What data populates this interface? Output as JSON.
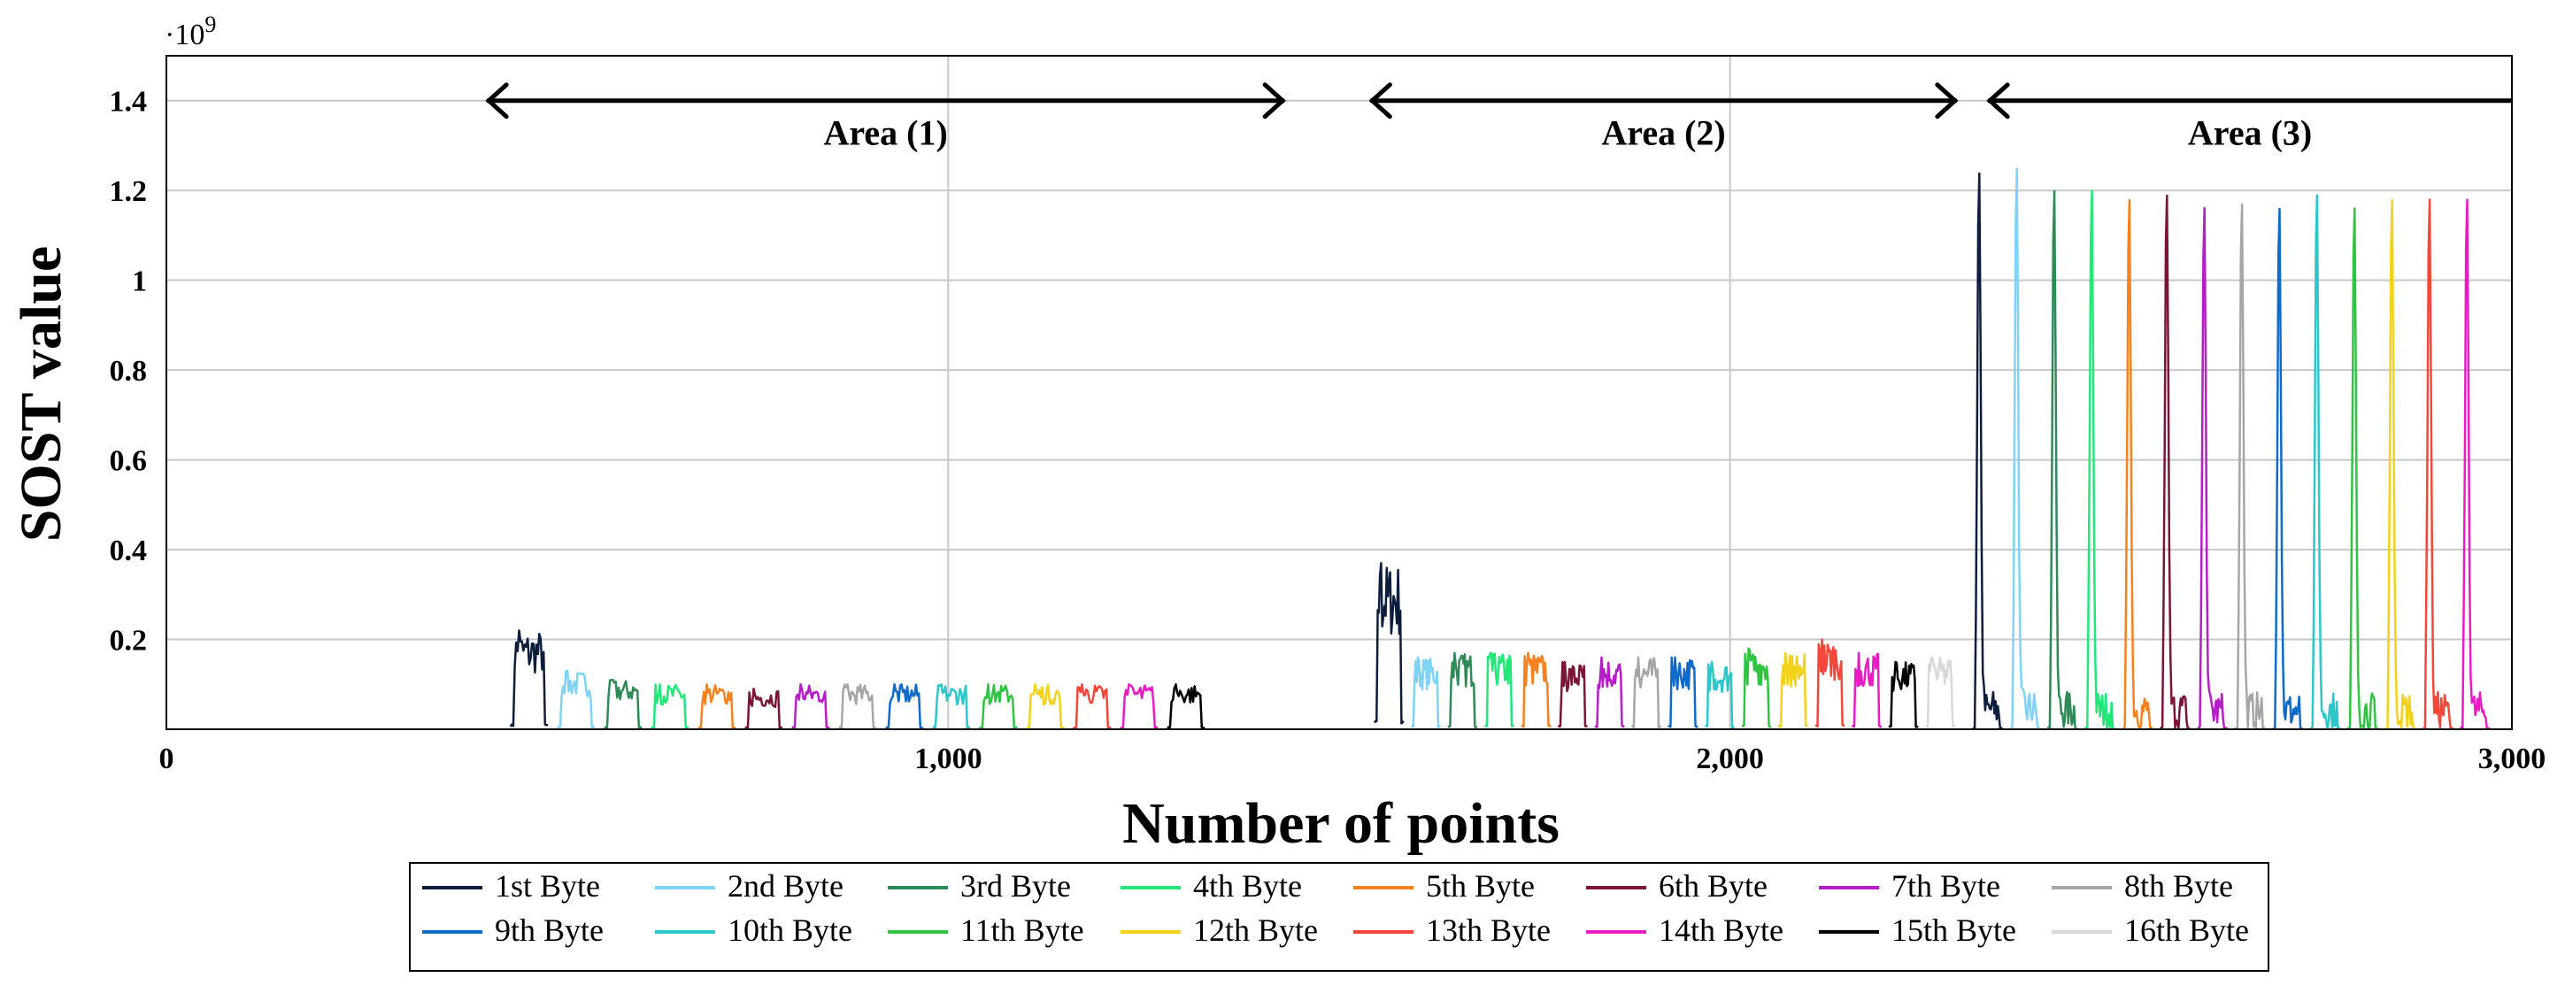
{
  "chart_data": {
    "type": "line",
    "title": "",
    "xlabel": "Number of points",
    "ylabel": "SOST value",
    "y_scale_label": "·10",
    "y_scale_exponent": "9",
    "xlim": [
      0,
      3000
    ],
    "ylim": [
      0,
      1.5
    ],
    "x_ticks": [
      0,
      1000,
      2000,
      3000
    ],
    "x_tick_labels": [
      "0",
      "1,000",
      "2,000",
      "3,000"
    ],
    "y_ticks": [
      0.2,
      0.4,
      0.6,
      0.8,
      1,
      1.2,
      1.4
    ],
    "y_tick_labels": [
      "0.2",
      "0.4",
      "0.6",
      "0.8",
      "1",
      "1.2",
      "1.4"
    ],
    "grid": true,
    "areas": [
      {
        "label": "Area (1)",
        "x_start": 410,
        "x_end": 1430,
        "y": 1.4
      },
      {
        "label": "Area (2)",
        "x_start": 1540,
        "x_end": 2290,
        "y": 1.4
      },
      {
        "label": "Area (3)",
        "x_start": 2330,
        "x_end": 3000,
        "y": 1.4
      }
    ],
    "legend": {
      "placement": "bottom-center",
      "rows": 2
    },
    "segments": {
      "area1": {
        "x_start": 440,
        "x_end": 1440,
        "step": 60
      },
      "area2": {
        "x_start": 1545,
        "x_end": 2285,
        "step": 47
      },
      "area3": {
        "x_start": 2310,
        "x_end": 3000,
        "step": 48
      }
    },
    "series": [
      {
        "name": "1st Byte",
        "color": "#0d1e3d",
        "peaks": [
          0.22,
          0.37,
          1.26
        ]
      },
      {
        "name": "2nd Byte",
        "color": "#7fd3f5",
        "peaks": [
          0.13,
          0.16,
          1.27
        ]
      },
      {
        "name": "3rd Byte",
        "color": "#2e8b57",
        "peaks": [
          0.11,
          0.17,
          1.22
        ]
      },
      {
        "name": "4th Byte",
        "color": "#22e87a",
        "peaks": [
          0.1,
          0.17,
          1.22
        ]
      },
      {
        "name": "5th Byte",
        "color": "#f5821f",
        "peaks": [
          0.1,
          0.17,
          1.2
        ]
      },
      {
        "name": "6th Byte",
        "color": "#7a1438",
        "peaks": [
          0.09,
          0.15,
          1.21
        ]
      },
      {
        "name": "7th Byte",
        "color": "#b51ec6",
        "peaks": [
          0.1,
          0.16,
          1.18
        ]
      },
      {
        "name": "8th Byte",
        "color": "#a6a6a6",
        "peaks": [
          0.1,
          0.16,
          1.19
        ]
      },
      {
        "name": "9th Byte",
        "color": "#0f6ac8",
        "peaks": [
          0.1,
          0.16,
          1.18
        ]
      },
      {
        "name": "10th Byte",
        "color": "#2dc6c9",
        "peaks": [
          0.1,
          0.15,
          1.21
        ]
      },
      {
        "name": "11th Byte",
        "color": "#31c443",
        "peaks": [
          0.1,
          0.18,
          1.18
        ]
      },
      {
        "name": "12th Byte",
        "color": "#f2d21b",
        "peaks": [
          0.1,
          0.17,
          1.2
        ]
      },
      {
        "name": "13th Byte",
        "color": "#f2473a",
        "peaks": [
          0.1,
          0.2,
          1.2
        ]
      },
      {
        "name": "14th Byte",
        "color": "#e81cc3",
        "peaks": [
          0.1,
          0.17,
          1.2
        ]
      },
      {
        "name": "15th Byte",
        "color": "#000000",
        "peaks": [
          0.1,
          0.15,
          0.0
        ]
      },
      {
        "name": "16th Byte",
        "color": "#d9d9d9",
        "peaks": [
          0.0,
          0.16,
          0.0
        ]
      }
    ]
  }
}
